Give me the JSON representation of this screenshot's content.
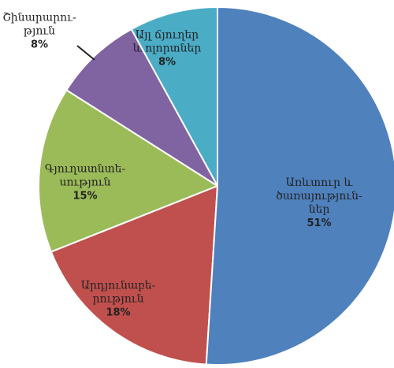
{
  "chart_data": {
    "type": "pie",
    "categories": [
      "Առևտուր և\nծառայություն-\nներ",
      "Արդյունաբե-\nրություն",
      "Գյուղատնտե-\nսություն",
      "Շինարարու-\nթյուն",
      "Այլ ճյուղեր\nև ոլորտներ"
    ],
    "values": [
      51,
      18,
      15,
      8,
      8
    ],
    "value_labels": [
      "51%",
      "18%",
      "15%",
      "8%",
      "8%"
    ],
    "colors": [
      "#4f81bd",
      "#c0504d",
      "#9bbb59",
      "#8064a2",
      "#4bacc6"
    ]
  }
}
